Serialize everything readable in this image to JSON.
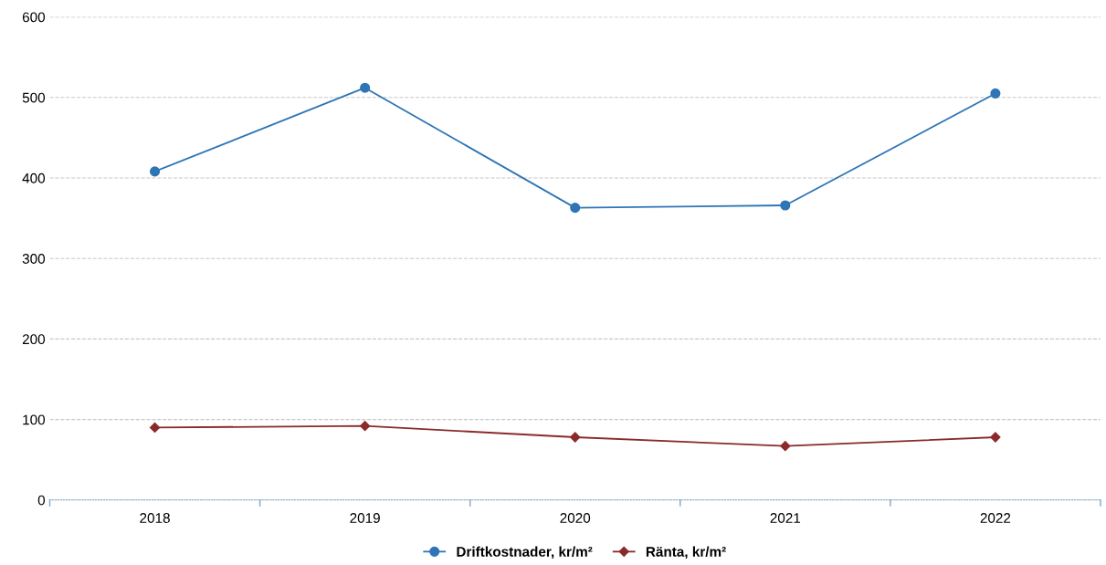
{
  "chart_data": {
    "type": "line",
    "categories": [
      "2018",
      "2019",
      "2020",
      "2021",
      "2022"
    ],
    "series": [
      {
        "name": "Driftkostnader, kr/m²",
        "color": "#2e75b6",
        "marker": "circle",
        "values": [
          408,
          512,
          363,
          366,
          505
        ]
      },
      {
        "name": "Ränta, kr/m²",
        "color": "#8b2a2a",
        "marker": "diamond",
        "values": [
          90,
          92,
          78,
          67,
          78
        ]
      }
    ],
    "ylim": [
      0,
      600
    ],
    "yticks": [
      0,
      100,
      200,
      300,
      400,
      500,
      600
    ],
    "grid": "y",
    "legend": "bottom",
    "line_style": "solid"
  }
}
